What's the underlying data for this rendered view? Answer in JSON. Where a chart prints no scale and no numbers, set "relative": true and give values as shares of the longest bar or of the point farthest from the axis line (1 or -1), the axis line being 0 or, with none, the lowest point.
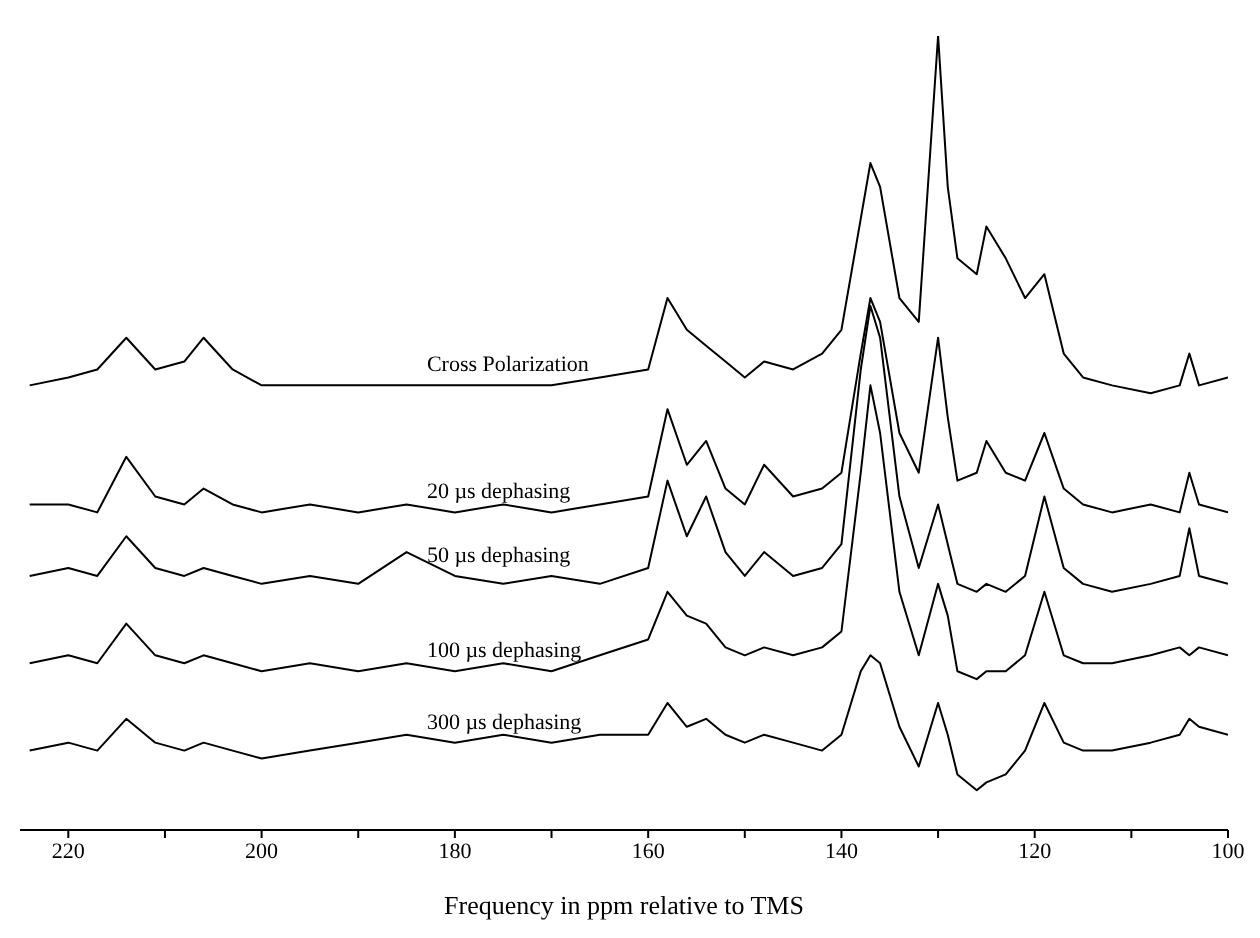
{
  "chart_data": {
    "type": "line",
    "relative": true,
    "xlabel": "Frequency in ppm relative to TMS",
    "xlim": [
      225,
      100
    ],
    "xticks": [
      {
        "value": 220,
        "label": "220"
      },
      {
        "value": 210,
        "label": null
      },
      {
        "value": 200,
        "label": "200"
      },
      {
        "value": 190,
        "label": null
      },
      {
        "value": 180,
        "label": "180"
      },
      {
        "value": 170,
        "label": null
      },
      {
        "value": 160,
        "label": "160"
      },
      {
        "value": 150,
        "label": null
      },
      {
        "value": 140,
        "label": "140"
      },
      {
        "value": 130,
        "label": null
      },
      {
        "value": 120,
        "label": "120"
      },
      {
        "value": 110,
        "label": null
      },
      {
        "value": 100,
        "label": "100"
      }
    ],
    "x": [
      224,
      220,
      217,
      214,
      211,
      208,
      206,
      203,
      200,
      195,
      190,
      185,
      180,
      175,
      170,
      165,
      160,
      158,
      156,
      154,
      152,
      150,
      148,
      145,
      142,
      140,
      138,
      137,
      136,
      134,
      132,
      130,
      129,
      128,
      126,
      125,
      123,
      121,
      119,
      117,
      115,
      112,
      108,
      105,
      104,
      103,
      100
    ],
    "marker": "none",
    "line_style": "solid",
    "series": [
      {
        "name": "Cross Polarization",
        "color": "#000000",
        "values": [
          0.56,
          0.57,
          0.58,
          0.62,
          0.58,
          0.59,
          0.62,
          0.58,
          0.56,
          0.56,
          0.56,
          0.56,
          0.56,
          0.56,
          0.56,
          0.57,
          0.58,
          0.67,
          0.63,
          0.61,
          0.59,
          0.57,
          0.59,
          0.58,
          0.6,
          0.63,
          0.77,
          0.84,
          0.81,
          0.67,
          0.64,
          1,
          0.81,
          0.72,
          0.7,
          0.76,
          0.72,
          0.67,
          0.7,
          0.6,
          0.57,
          0.56,
          0.55,
          0.56,
          0.6,
          0.56,
          0.57
        ]
      },
      {
        "name": "20 µs dephasing",
        "color": "#000000",
        "values": [
          0.41,
          0.41,
          0.4,
          0.47,
          0.42,
          0.41,
          0.43,
          0.41,
          0.4,
          0.41,
          0.4,
          0.41,
          0.4,
          0.41,
          0.4,
          0.41,
          0.42,
          0.53,
          0.46,
          0.49,
          0.43,
          0.41,
          0.46,
          0.42,
          0.43,
          0.45,
          0.6,
          0.67,
          0.64,
          0.5,
          0.45,
          0.62,
          0.52,
          0.44,
          0.45,
          0.49,
          0.45,
          0.44,
          0.5,
          0.43,
          0.41,
          0.4,
          0.41,
          0.4,
          0.45,
          0.41,
          0.4
        ]
      },
      {
        "name": "50 µs dephasing",
        "color": "#000000",
        "values": [
          0.32,
          0.33,
          0.32,
          0.37,
          0.33,
          0.32,
          0.33,
          0.32,
          0.31,
          0.32,
          0.31,
          0.35,
          0.32,
          0.31,
          0.32,
          0.31,
          0.33,
          0.44,
          0.37,
          0.42,
          0.35,
          0.32,
          0.35,
          0.32,
          0.33,
          0.36,
          0.58,
          0.66,
          0.62,
          0.42,
          0.33,
          0.41,
          0.36,
          0.31,
          0.3,
          0.31,
          0.3,
          0.32,
          0.42,
          0.33,
          0.31,
          0.3,
          0.31,
          0.32,
          0.38,
          0.32,
          0.31
        ]
      },
      {
        "name": "100 µs dephasing",
        "color": "#000000",
        "values": [
          0.21,
          0.22,
          0.21,
          0.26,
          0.22,
          0.21,
          0.22,
          0.21,
          0.2,
          0.21,
          0.2,
          0.21,
          0.2,
          0.21,
          0.2,
          0.22,
          0.24,
          0.3,
          0.27,
          0.26,
          0.23,
          0.22,
          0.23,
          0.22,
          0.23,
          0.25,
          0.45,
          0.56,
          0.5,
          0.3,
          0.22,
          0.31,
          0.27,
          0.2,
          0.19,
          0.2,
          0.2,
          0.22,
          0.3,
          0.22,
          0.21,
          0.21,
          0.22,
          0.23,
          0.22,
          0.23,
          0.22
        ]
      },
      {
        "name": "300 µs dephasing",
        "color": "#000000",
        "values": [
          0.1,
          0.11,
          0.1,
          0.14,
          0.11,
          0.1,
          0.11,
          0.1,
          0.09,
          0.1,
          0.11,
          0.12,
          0.11,
          0.12,
          0.11,
          0.12,
          0.12,
          0.16,
          0.13,
          0.14,
          0.12,
          0.11,
          0.12,
          0.11,
          0.1,
          0.12,
          0.2,
          0.22,
          0.21,
          0.13,
          0.08,
          0.16,
          0.12,
          0.07,
          0.05,
          0.06,
          0.07,
          0.1,
          0.16,
          0.11,
          0.1,
          0.1,
          0.11,
          0.12,
          0.14,
          0.13,
          0.12
        ]
      }
    ]
  }
}
